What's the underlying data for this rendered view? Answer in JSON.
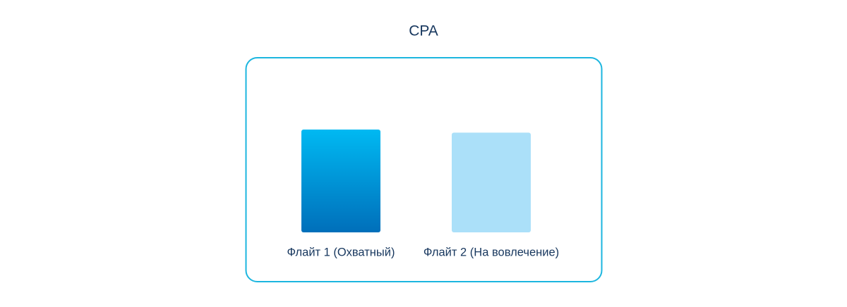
{
  "chart_data": {
    "type": "bar",
    "title": "CPA",
    "categories": [
      "Флайт 1 (Охватный)",
      "Флайт 2 (На вовлечение)"
    ],
    "values": [
      100,
      97
    ],
    "colors": [
      {
        "top": "#00b9f2",
        "bottom": "#006fba"
      },
      {
        "top": "#abe0f9",
        "bottom": "#abe0f9"
      }
    ],
    "ylim": [
      0,
      100
    ]
  }
}
